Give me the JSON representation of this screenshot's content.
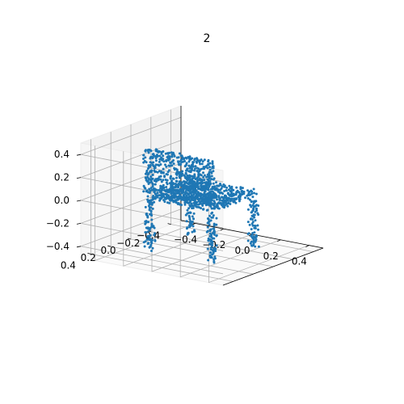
{
  "chart_data": {
    "type": "scatter",
    "title": "2",
    "xlabel": "",
    "ylabel": "",
    "zlabel": "",
    "xlim": [
      -0.5,
      0.5
    ],
    "ylim": [
      -0.5,
      0.5
    ],
    "zlim": [
      -0.5,
      0.5
    ],
    "x_ticks": [
      -0.4,
      -0.2,
      0.0,
      0.2,
      0.4
    ],
    "y_ticks": [
      0.4,
      0.2,
      0.0,
      -0.2,
      -0.4
    ],
    "z_ticks": [
      0.4,
      0.2,
      0.0,
      -0.2,
      -0.4
    ],
    "x_tick_labels": [
      "−0.4",
      "−0.2",
      "0.0",
      "0.2",
      "0.4"
    ],
    "y_tick_labels": [
      "0.4",
      "0.2",
      "0.0",
      "−0.2",
      "−0.4"
    ],
    "z_tick_labels": [
      "0.4",
      "0.2",
      "0.0",
      "−0.2",
      "−0.4"
    ],
    "grid": true,
    "marker_color": "#1f77b4",
    "shape": "chair point cloud",
    "point_count_approx": 1800
  }
}
